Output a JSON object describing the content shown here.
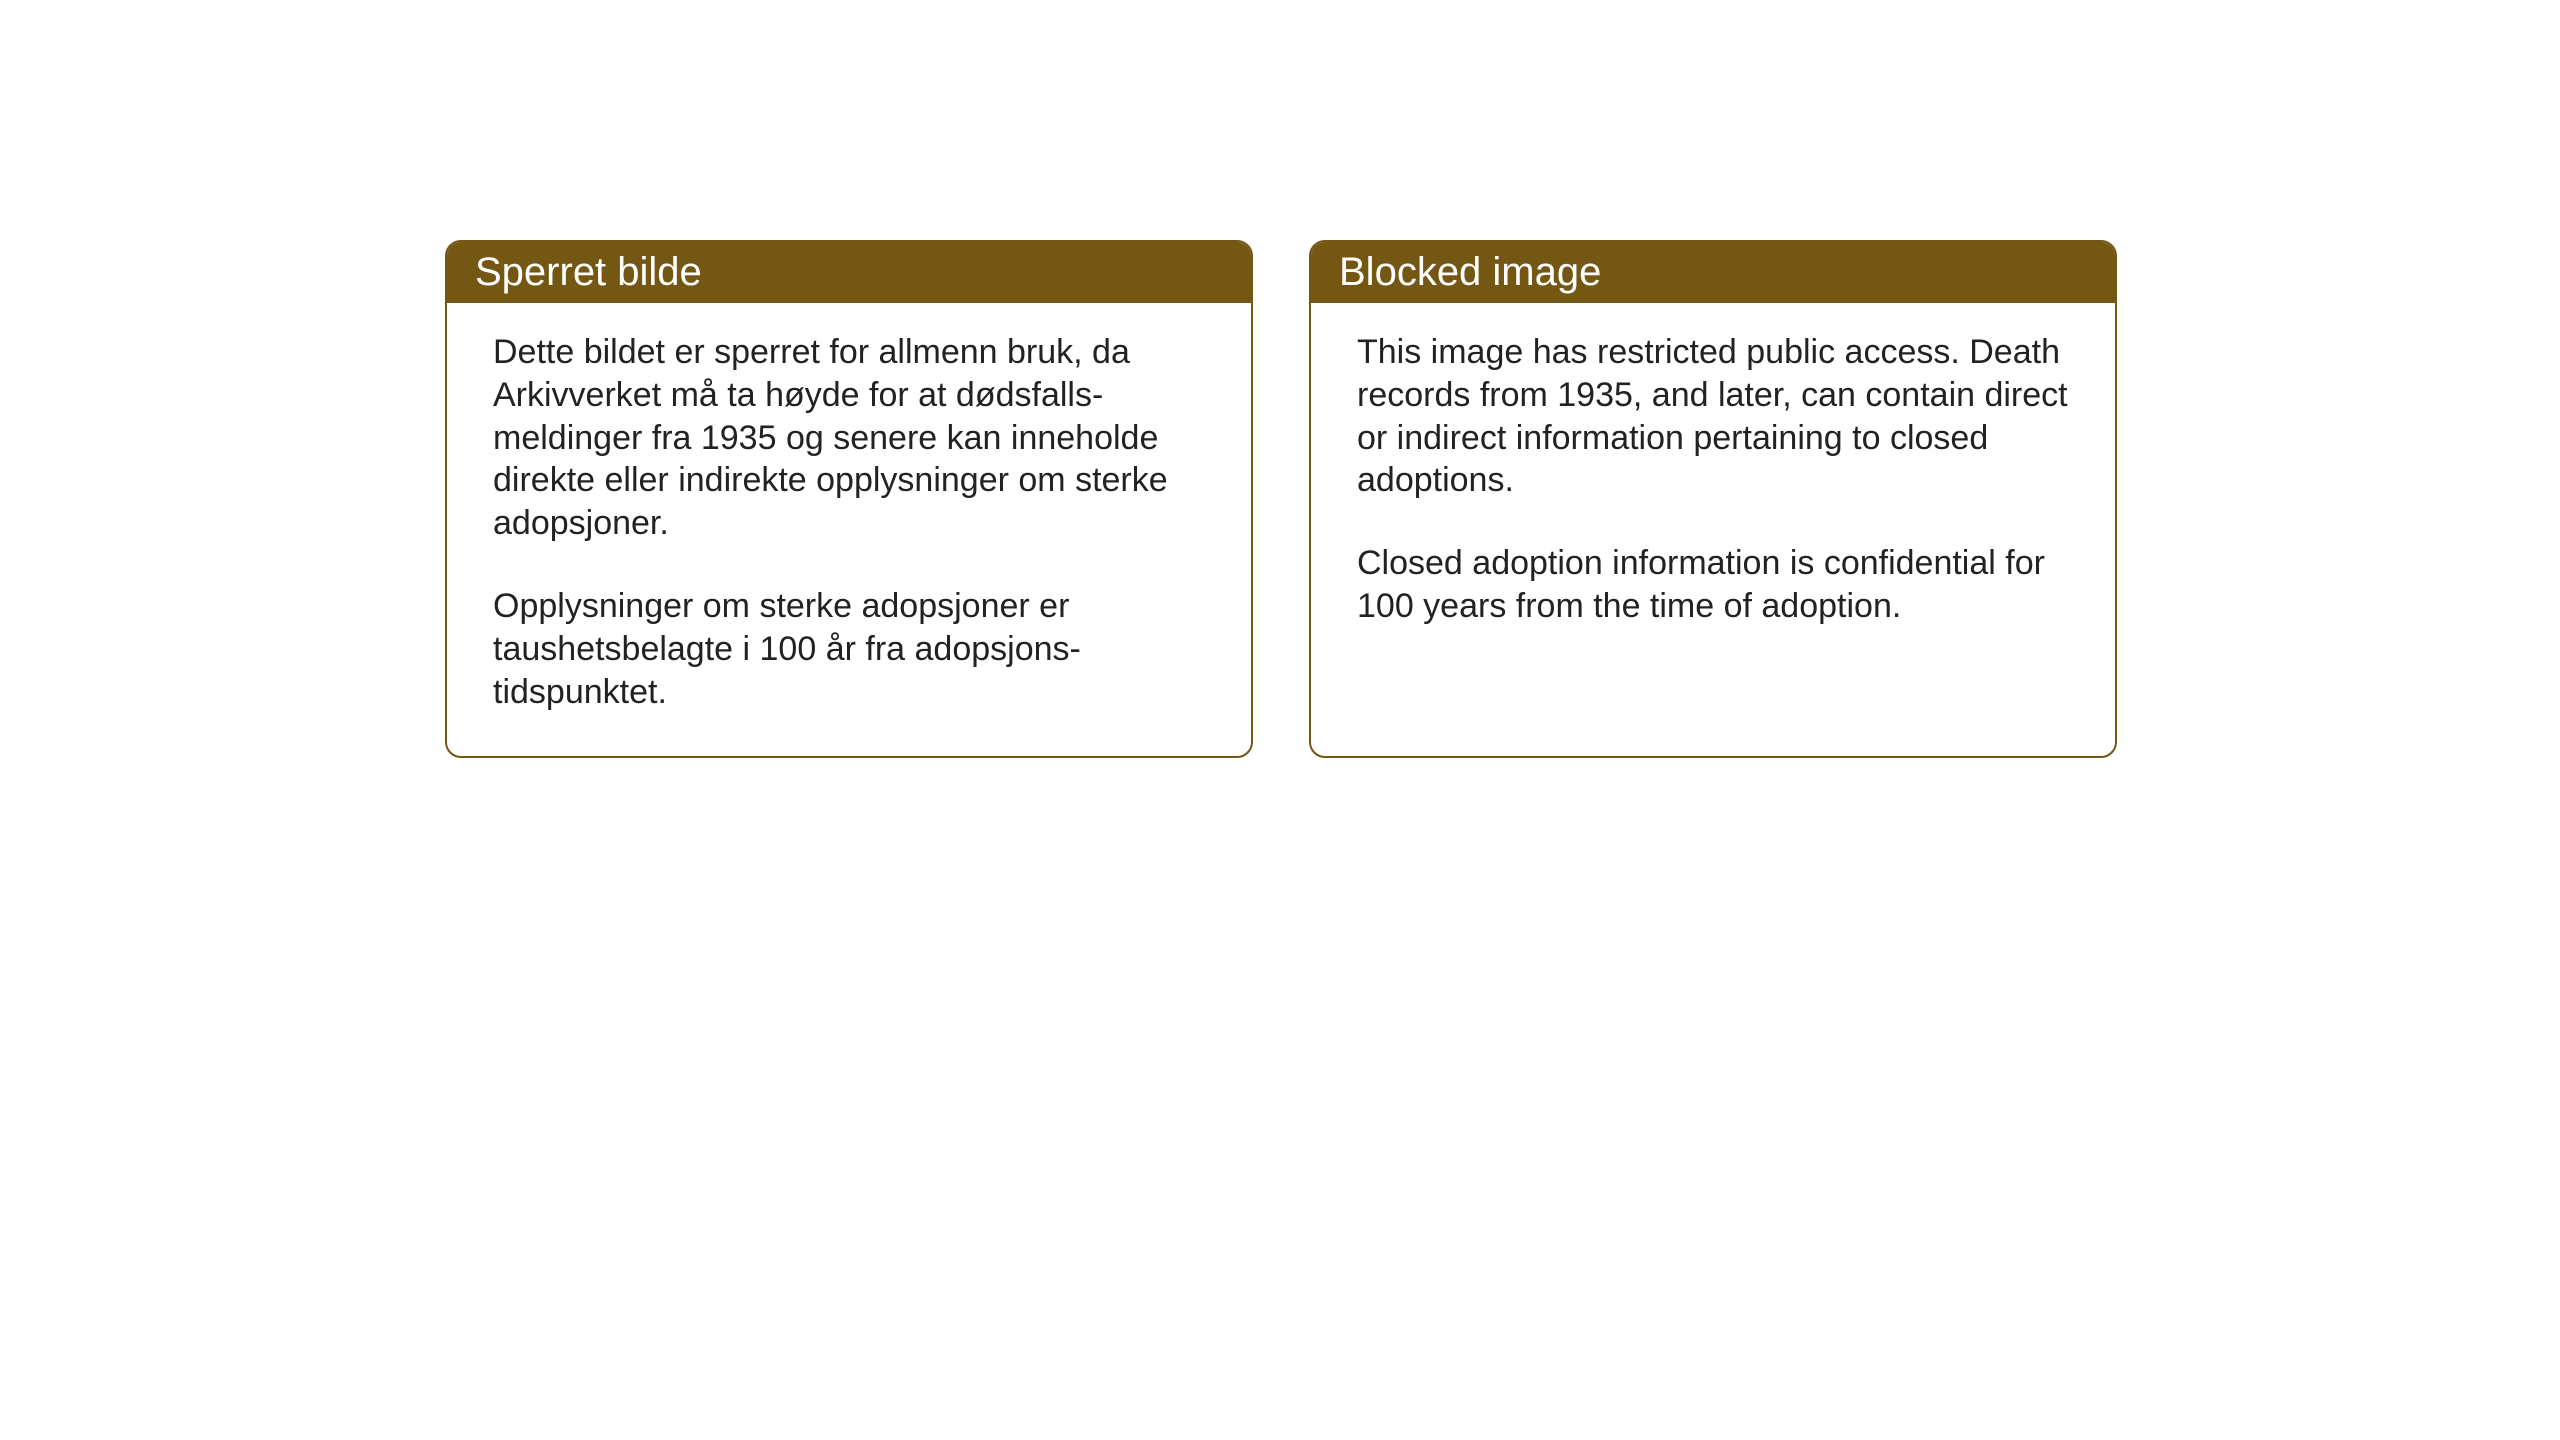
{
  "layout": {
    "background_color": "#ffffff",
    "card_border_color": "#735713",
    "card_border_width": 2,
    "card_border_radius": 16,
    "header_bg_color": "#735713",
    "header_text_color": "#ffffff",
    "body_text_color": "#222222",
    "header_font_size": 40,
    "body_font_size": 34
  },
  "cards": {
    "norwegian": {
      "title": "Sperret bilde",
      "paragraph1": "Dette bildet er sperret for allmenn bruk, da Arkivverket må ta høyde for at dødsfalls-meldinger fra 1935 og senere kan inneholde direkte eller indirekte opplysninger om sterke adopsjoner.",
      "paragraph2": "Opplysninger om sterke adopsjoner er taushetsbelagte i 100 år fra adopsjons-tidspunktet."
    },
    "english": {
      "title": "Blocked image",
      "paragraph1": "This image has restricted public access. Death records from 1935, and later, can contain direct or indirect information pertaining to closed adoptions.",
      "paragraph2": "Closed adoption information is confidential for 100 years from the time of adoption."
    }
  }
}
